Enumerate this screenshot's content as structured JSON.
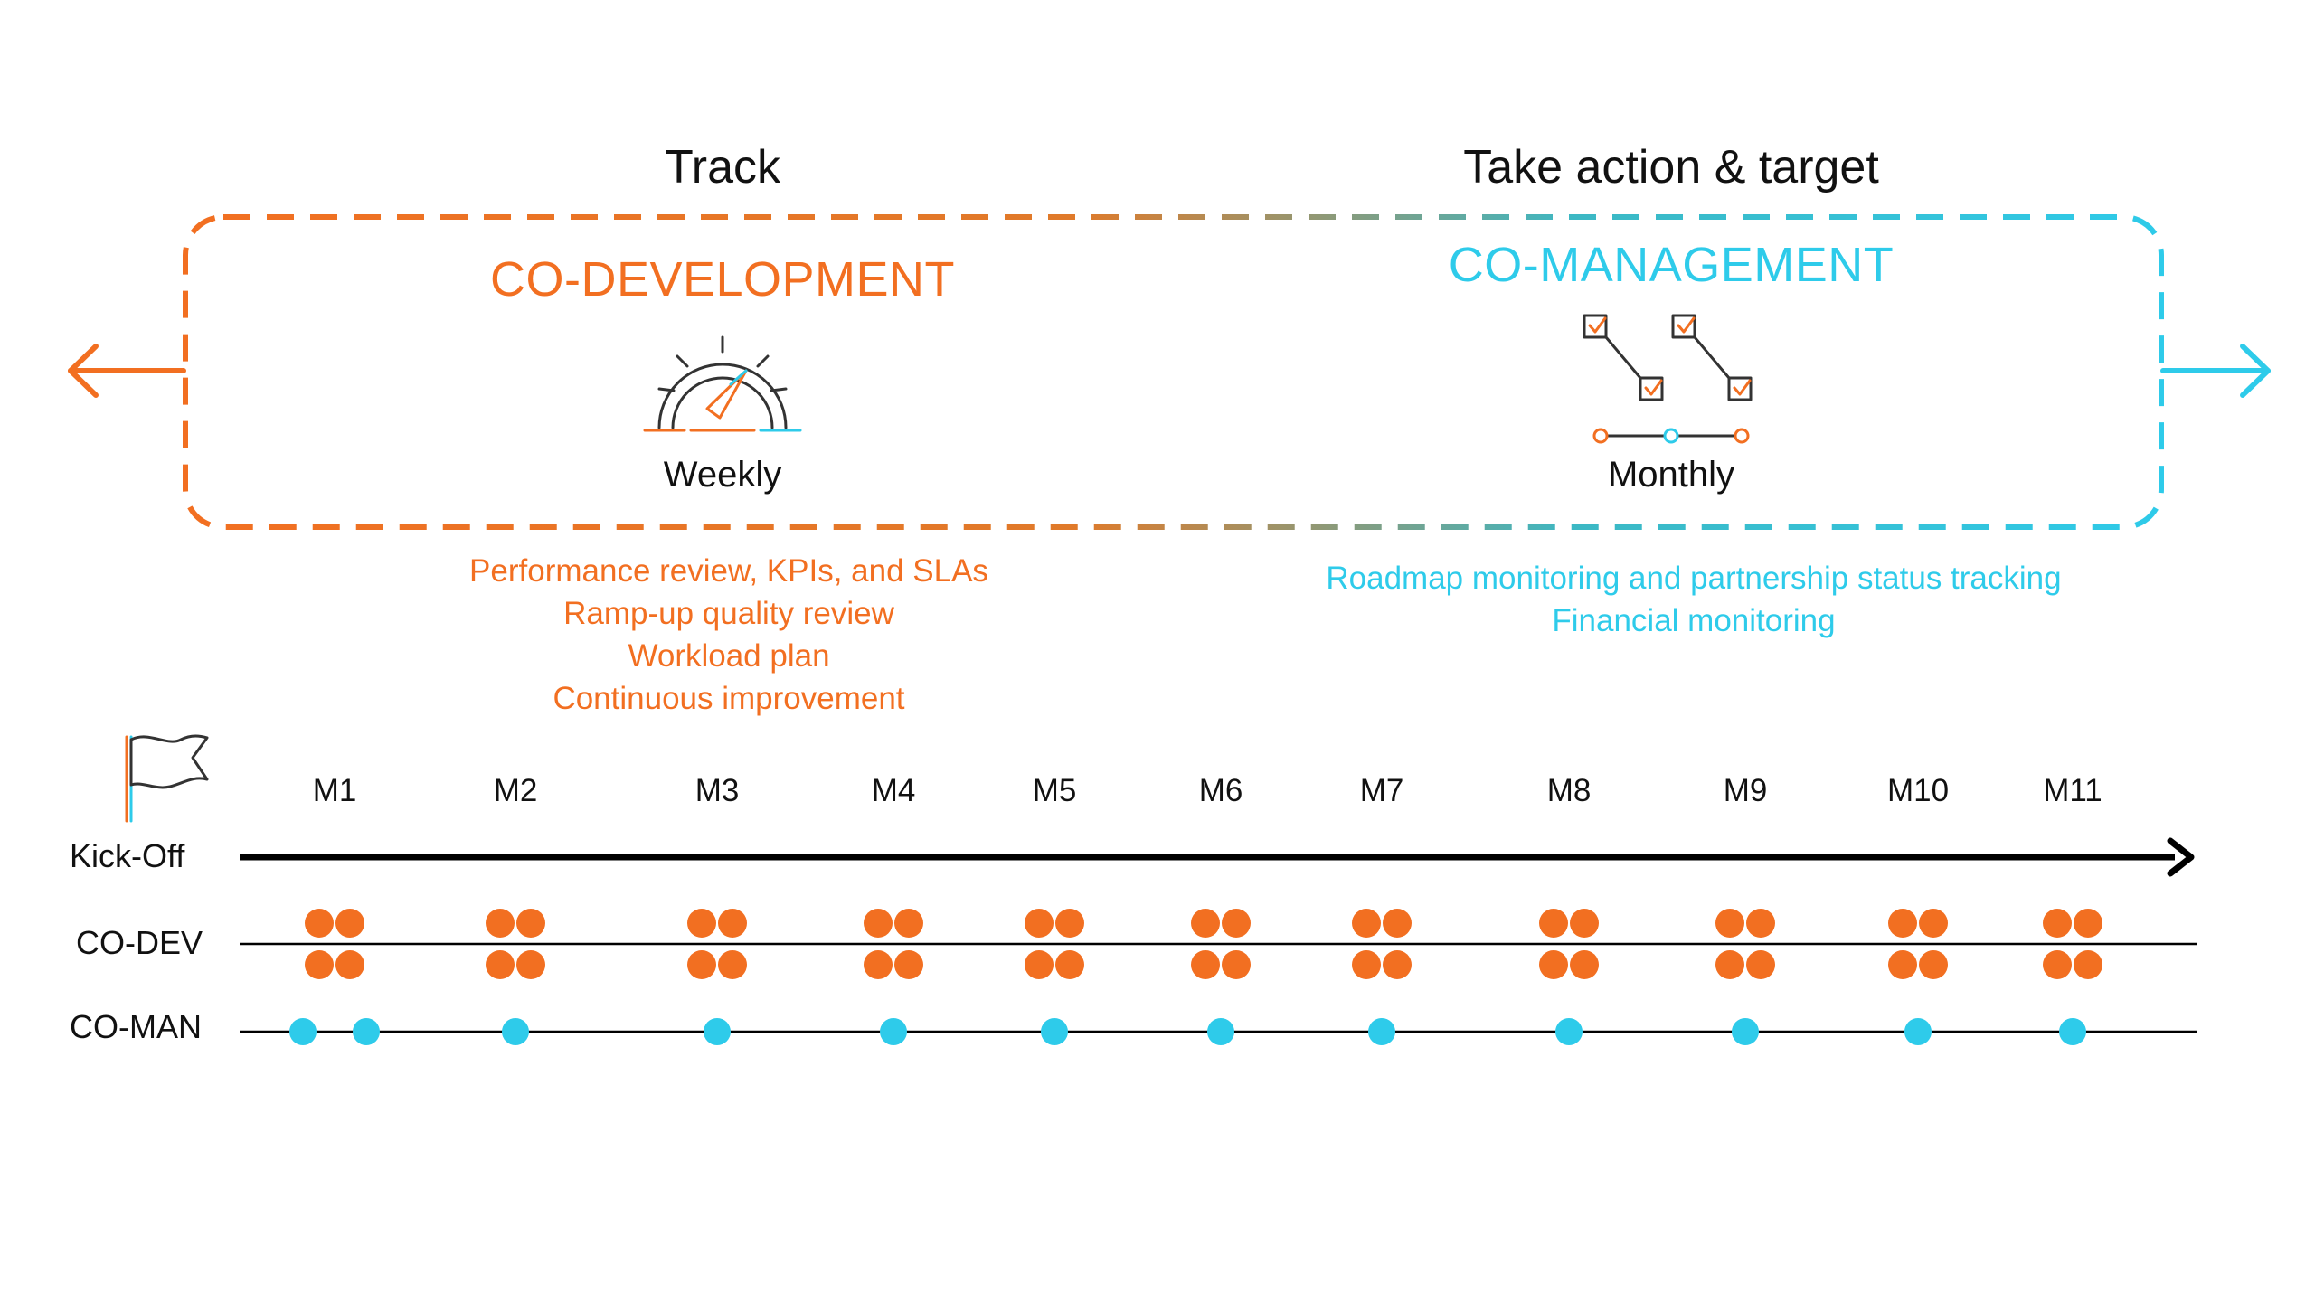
{
  "colors": {
    "orange": "#F26F21",
    "cyan": "#2ECBEA",
    "dark": "#111111"
  },
  "icons": {
    "left_arrow": "arrow-left-icon",
    "right_arrow": "arrow-right-icon",
    "gauge": "speedometer-icon",
    "workflow": "checklist-flow-icon",
    "flag": "flag-icon"
  },
  "headers": {
    "track": "Track",
    "action": "Take action & target"
  },
  "codev": {
    "title": "CO-DEVELOPMENT",
    "frequency": "Weekly",
    "notes": [
      "Performance review, KPIs, and SLAs",
      "Ramp-up quality review",
      "Workload plan",
      "Continuous improvement"
    ]
  },
  "coman": {
    "title": "CO-MANAGEMENT",
    "frequency": "Monthly",
    "notes": [
      "Roadmap monitoring and partnership status tracking",
      "Financial monitoring"
    ]
  },
  "timeline": {
    "kickoff_label": "Kick-Off",
    "codev_label": "CO-DEV",
    "coman_label": "CO-MAN",
    "months": [
      "M1",
      "M2",
      "M3",
      "M4",
      "M5",
      "M6",
      "M7",
      "M8",
      "M9",
      "M10",
      "M11"
    ],
    "codev_meetings_per_month": 4,
    "coman_meetings_per_month": [
      2,
      1,
      1,
      1,
      1,
      1,
      1,
      1,
      1,
      1,
      1
    ]
  }
}
